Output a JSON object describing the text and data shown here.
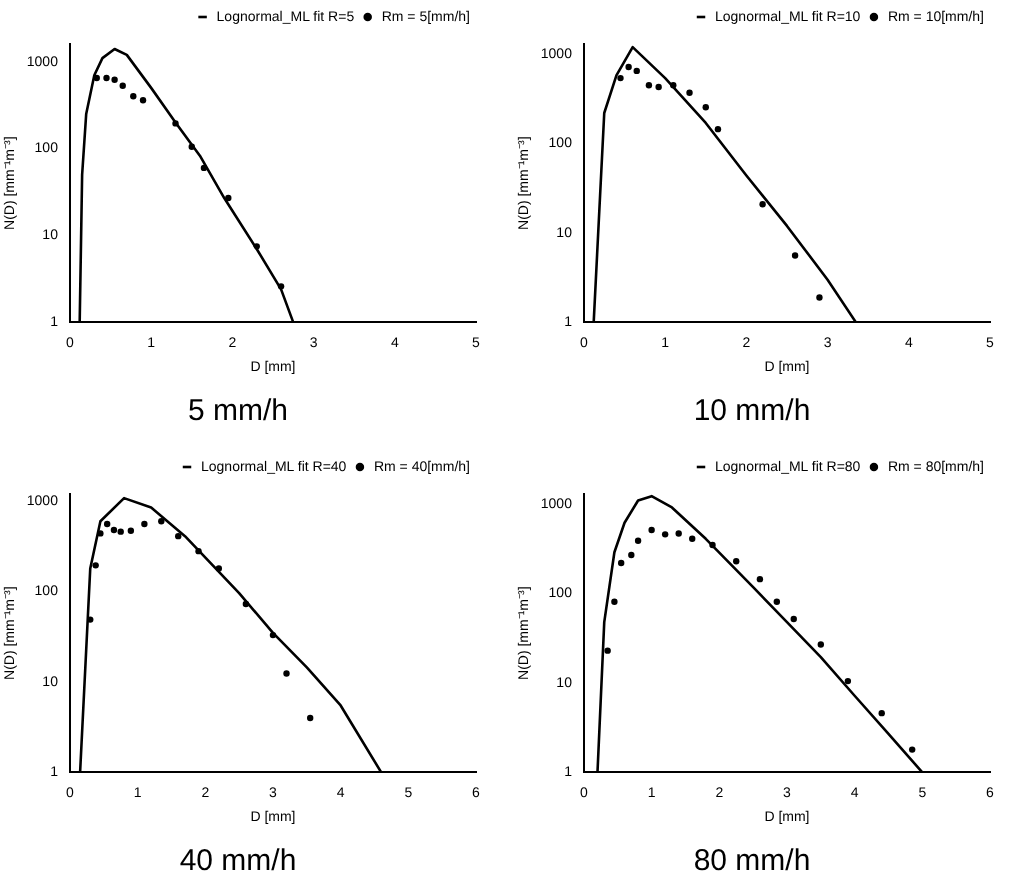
{
  "chart_data": [
    {
      "type": "line",
      "title": "5 mm/h",
      "xlabel": "D [mm]",
      "ylabel": "N(D) [mm⁻¹m⁻³]",
      "xlim": [
        0,
        5
      ],
      "xticks": [
        0,
        1,
        2,
        3,
        4,
        5
      ],
      "ylim": [
        1,
        1600
      ],
      "yticks": [
        1,
        10,
        100,
        1000
      ],
      "log": "y",
      "grid": false,
      "legend": "top right",
      "series": [
        {
          "name": "Lognormal_ML fit R=5",
          "type": "line",
          "color": "#000000",
          "marker": "none",
          "x": [
            0.12,
            0.15,
            0.2,
            0.3,
            0.4,
            0.55,
            0.7,
            1.0,
            1.3,
            1.6,
            1.9,
            2.3,
            2.6,
            2.75
          ],
          "values": [
            1,
            50,
            250,
            700,
            1100,
            1400,
            1200,
            500,
            200,
            83,
            27,
            7,
            2.4,
            1
          ]
        },
        {
          "name": "Rm = 5[mm/h]",
          "type": "scatter",
          "color": "#000000",
          "marker": "circle",
          "x": [
            0.33,
            0.45,
            0.55,
            0.65,
            0.78,
            0.9,
            1.3,
            1.5,
            1.65,
            1.95,
            2.3,
            2.6
          ],
          "values": [
            650,
            650,
            620,
            530,
            400,
            360,
            195,
            105,
            60,
            27,
            7.5,
            2.6
          ]
        }
      ]
    },
    {
      "type": "line",
      "title": "10 mm/h",
      "xlabel": "D [mm]",
      "ylabel": "N(D) [mm⁻¹m⁻³]",
      "xlim": [
        0,
        5
      ],
      "xticks": [
        0,
        1,
        2,
        3,
        4,
        5
      ],
      "ylim": [
        1,
        1300
      ],
      "yticks": [
        1,
        10,
        100,
        1000
      ],
      "log": "y",
      "grid": false,
      "legend": "top right",
      "series": [
        {
          "name": "Lognormal_ML fit R=10",
          "type": "line",
          "color": "#000000",
          "marker": "none",
          "x": [
            0.12,
            0.25,
            0.4,
            0.6,
            1.0,
            1.5,
            2.0,
            2.5,
            3.0,
            3.35
          ],
          "values": [
            1,
            220,
            580,
            1200,
            540,
            170,
            44,
            12,
            3,
            1
          ]
        },
        {
          "name": "Rm = 10[mm/h]",
          "type": "scatter",
          "color": "#000000",
          "marker": "circle",
          "x": [
            0.45,
            0.55,
            0.65,
            0.8,
            0.92,
            1.1,
            1.3,
            1.5,
            1.65,
            2.2,
            2.6,
            2.9
          ],
          "values": [
            540,
            720,
            650,
            450,
            430,
            450,
            370,
            255,
            145,
            21,
            5.6,
            1.9
          ]
        }
      ]
    },
    {
      "type": "line",
      "title": "40 mm/h",
      "xlabel": "D [mm]",
      "ylabel": "N(D) [mm⁻¹m⁻³]",
      "xlim": [
        0,
        6
      ],
      "xticks": [
        0,
        1,
        2,
        3,
        4,
        5,
        6
      ],
      "ylim": [
        1,
        1200
      ],
      "yticks": [
        1,
        10,
        100,
        1000
      ],
      "log": "y",
      "grid": false,
      "legend": "top right",
      "series": [
        {
          "name": "Lognormal_ML fit R=40",
          "type": "line",
          "color": "#000000",
          "marker": "none",
          "x": [
            0.15,
            0.3,
            0.45,
            0.8,
            1.2,
            1.7,
            2.5,
            3.0,
            3.5,
            4.0,
            4.6
          ],
          "values": [
            1,
            180,
            600,
            1080,
            850,
            410,
            96,
            35,
            14.5,
            5.5,
            1
          ]
        },
        {
          "name": "Rm = 40[mm/h]",
          "type": "scatter",
          "color": "#000000",
          "marker": "circle",
          "x": [
            0.3,
            0.38,
            0.45,
            0.55,
            0.65,
            0.75,
            0.9,
            1.1,
            1.35,
            1.6,
            1.9,
            2.2,
            2.6,
            3.0,
            3.2,
            3.55
          ],
          "values": [
            49,
            195,
            440,
            560,
            480,
            460,
            470,
            560,
            600,
            410,
            280,
            180,
            73,
            33,
            12.4,
            4
          ]
        }
      ]
    },
    {
      "type": "line",
      "title": "80 mm/h",
      "xlabel": "D [mm]",
      "ylabel": "N(D) [mm⁻¹m⁻³]",
      "xlim": [
        0,
        6
      ],
      "xticks": [
        0,
        1,
        2,
        3,
        4,
        5,
        6
      ],
      "ylim": [
        1,
        1300
      ],
      "yticks": [
        1,
        10,
        100,
        1000
      ],
      "log": "y",
      "grid": false,
      "legend": "top right",
      "series": [
        {
          "name": "Lognormal_ML fit R=80",
          "type": "line",
          "color": "#000000",
          "marker": "none",
          "x": [
            0.2,
            0.3,
            0.45,
            0.6,
            0.8,
            1.0,
            1.3,
            1.8,
            2.5,
            3.0,
            3.5,
            4.0,
            4.5,
            5.0
          ],
          "values": [
            1,
            48,
            290,
            620,
            1100,
            1230,
            920,
            410,
            118,
            48,
            19.5,
            7.2,
            2.7,
            1
          ]
        },
        {
          "name": "Rm = 80[mm/h]",
          "type": "scatter",
          "color": "#000000",
          "marker": "circle",
          "x": [
            0.35,
            0.45,
            0.55,
            0.7,
            0.8,
            1.0,
            1.2,
            1.4,
            1.6,
            1.9,
            2.25,
            2.6,
            2.85,
            3.1,
            3.5,
            3.9,
            4.4,
            4.85
          ],
          "values": [
            23,
            81,
            220,
            270,
            390,
            515,
            460,
            470,
            410,
            350,
            230,
            145,
            81,
            52,
            27,
            10.5,
            4.6,
            1.8
          ]
        }
      ]
    }
  ]
}
